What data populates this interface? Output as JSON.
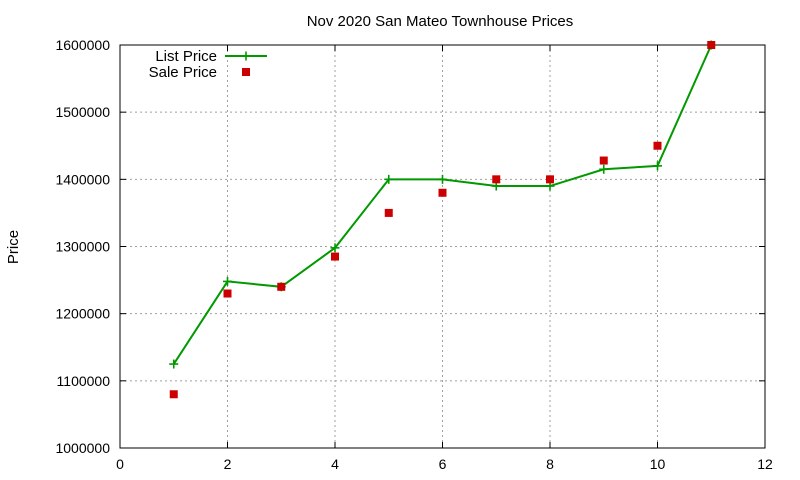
{
  "chart_data": {
    "type": "line",
    "title": "Nov 2020 San Mateo Townhouse Prices",
    "xlabel": "",
    "ylabel": "Price",
    "xlim": [
      0,
      12
    ],
    "ylim": [
      1000000,
      1600000
    ],
    "x_ticks": [
      0,
      2,
      4,
      6,
      8,
      10,
      12
    ],
    "y_ticks": [
      1000000,
      1100000,
      1200000,
      1300000,
      1400000,
      1500000,
      1600000
    ],
    "grid": true,
    "legend_position": "top-left",
    "series": [
      {
        "name": "List Price",
        "style": "line+cross",
        "color": "#009900",
        "x": [
          1,
          2,
          3,
          4,
          5,
          6,
          7,
          8,
          9,
          10,
          11
        ],
        "values": [
          1125000,
          1248000,
          1240000,
          1298000,
          1400000,
          1400000,
          1390000,
          1390000,
          1415000,
          1420000,
          1600000
        ]
      },
      {
        "name": "Sale Price",
        "style": "square",
        "color": "#cc0000",
        "x": [
          1,
          2,
          3,
          4,
          5,
          6,
          7,
          8,
          9,
          10,
          11
        ],
        "values": [
          1080000,
          1230000,
          1240000,
          1285000,
          1350000,
          1380000,
          1400000,
          1400000,
          1428000,
          1450000,
          1600000
        ]
      }
    ]
  }
}
